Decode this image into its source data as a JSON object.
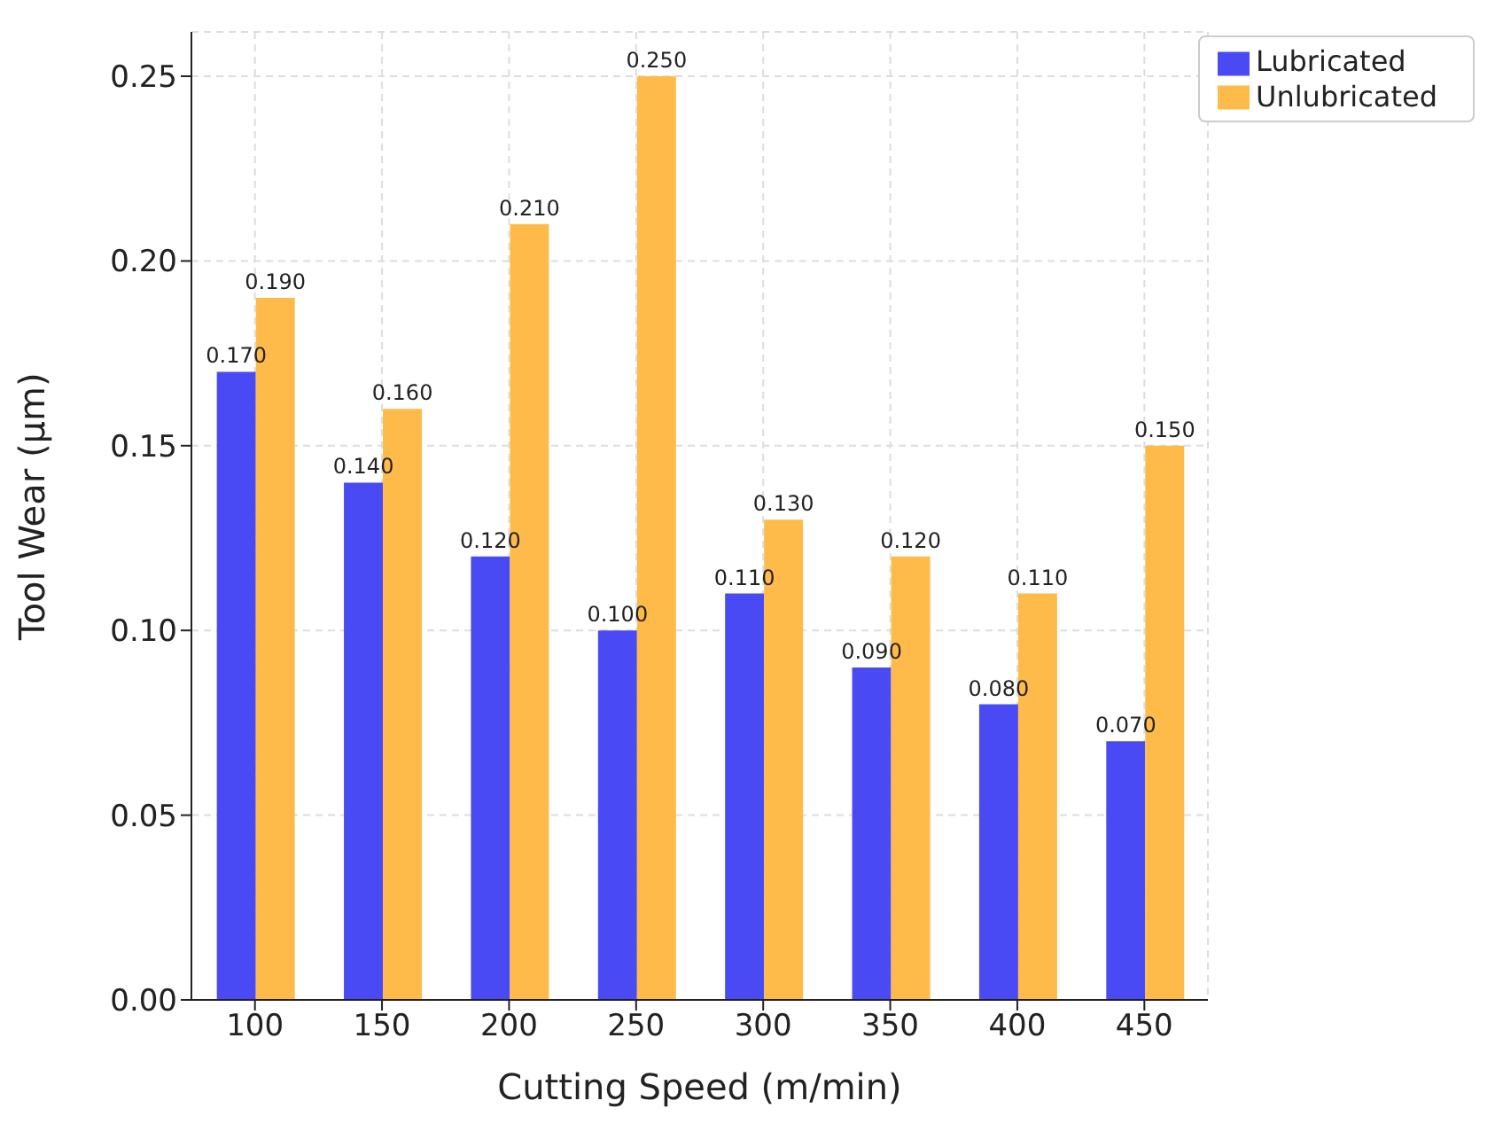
{
  "chart_data": {
    "type": "bar",
    "xlabel": "Cutting Speed (m/min)",
    "ylabel": "Tool Wear (µm)",
    "categories": [
      "100",
      "150",
      "200",
      "250",
      "300",
      "350",
      "400",
      "450"
    ],
    "series": [
      {
        "name": "Lubricated",
        "color": "#4a4af5",
        "values": [
          0.17,
          0.14,
          0.12,
          0.1,
          0.11,
          0.09,
          0.08,
          0.07
        ],
        "value_labels": [
          "0.170",
          "0.140",
          "0.120",
          "0.100",
          "0.110",
          "0.090",
          "0.080",
          "0.070"
        ]
      },
      {
        "name": "Unlubricated",
        "color": "#ffbb4a",
        "values": [
          0.19,
          0.16,
          0.21,
          0.25,
          0.13,
          0.12,
          0.11,
          0.15
        ],
        "value_labels": [
          "0.190",
          "0.160",
          "0.210",
          "0.250",
          "0.130",
          "0.120",
          "0.110",
          "0.150"
        ]
      }
    ],
    "ylim": [
      0,
      0.262
    ],
    "yticks": [
      {
        "value": 0,
        "label": "0.00"
      },
      {
        "value": 0.05,
        "label": "0.05"
      },
      {
        "value": 0.1,
        "label": "0.10"
      },
      {
        "value": 0.15,
        "label": "0.15"
      },
      {
        "value": 0.2,
        "label": "0.20"
      },
      {
        "value": 0.25,
        "label": "0.25"
      }
    ],
    "grid": true,
    "legend": "top right"
  }
}
